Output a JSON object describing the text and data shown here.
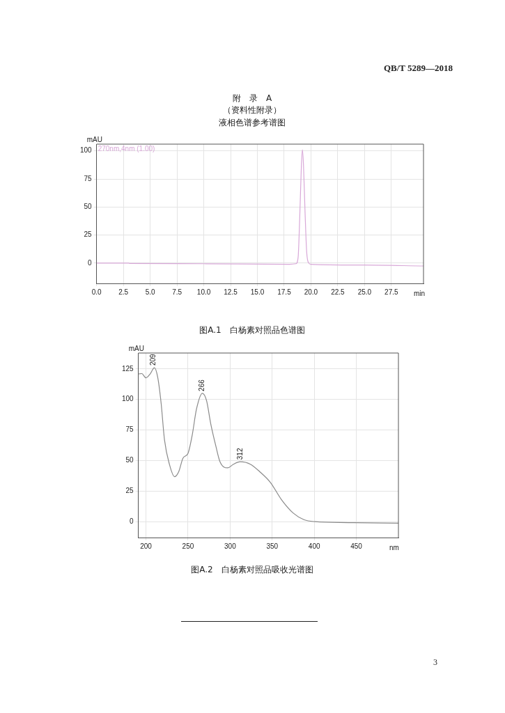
{
  "chart_data": [
    {
      "type": "line",
      "title": "液相色谱参考谱图",
      "xlabel": "min",
      "ylabel": "mAU",
      "annotations": [
        "QB/T 5289—2018",
        "附　录　A",
        "（资料性附录）",
        "图A.1　白杨素对照品色谱图"
      ],
      "series": [
        {
          "name": "270nm,4nm (1.00)",
          "color": "#d8a8d8",
          "x": [
            0,
            3,
            3.1,
            10,
            18,
            18.6,
            18.8,
            18.95,
            19.1,
            19.2,
            19.3,
            19.45,
            19.6,
            19.8,
            20,
            25,
            30.5
          ],
          "values": [
            0,
            0,
            -0.3,
            -0.5,
            -1,
            -0.5,
            5,
            40,
            85,
            101,
            88,
            45,
            10,
            0,
            -1,
            -1.7,
            -2.5
          ]
        }
      ],
      "xlim": [
        0,
        30.5
      ],
      "ylim": [
        -18,
        106
      ],
      "xticks": [
        {
          "value": 0,
          "label": "0.0"
        },
        {
          "value": 2.5,
          "label": "2.5"
        },
        {
          "value": 5,
          "label": "5.0"
        },
        {
          "value": 7.5,
          "label": "7.5"
        },
        {
          "value": 10,
          "label": "10.0"
        },
        {
          "value": 12.5,
          "label": "12.5"
        },
        {
          "value": 15,
          "label": "15.0"
        },
        {
          "value": 17.5,
          "label": "17.5"
        },
        {
          "value": 20,
          "label": "20.0"
        },
        {
          "value": 22.5,
          "label": "22.5"
        },
        {
          "value": 25,
          "label": "25.0"
        },
        {
          "value": 27.5,
          "label": "27.5"
        }
      ],
      "yticks": [
        0,
        25,
        50,
        75,
        100
      ],
      "grid": true,
      "legend": "top left",
      "marker": "none",
      "line_style": "solid"
    },
    {
      "type": "line",
      "xlabel": "nm",
      "ylabel": "mAU",
      "annotations": [
        {
          "text": "209",
          "x": 209,
          "y": 126
        },
        {
          "text": "266",
          "x": 267,
          "y": 105
        },
        {
          "text": "312",
          "x": 312,
          "y": 49
        },
        "图A.2　白杨素对照品吸收光谱图",
        "3"
      ],
      "series": [
        {
          "color": "#8a8a8a",
          "x": [
            191,
            195,
            200,
            205,
            210,
            214,
            218,
            222,
            228,
            234,
            239,
            244,
            250,
            255,
            260,
            267,
            272,
            277,
            283,
            288,
            297,
            304,
            312,
            324,
            335,
            348,
            361,
            375,
            388,
            401,
            441,
            500
          ],
          "values": [
            120.9,
            121.2,
            117.7,
            120.9,
            126,
            118,
            97,
            67,
            46.6,
            36.8,
            41,
            52,
            56,
            71,
            92,
            105,
            99,
            80,
            62,
            49,
            44,
            47,
            49,
            47,
            41,
            32,
            18,
            7,
            1.5,
            0,
            -0.8,
            -1.3
          ]
        }
      ],
      "xlim": [
        191,
        500
      ],
      "ylim": [
        -13,
        138
      ],
      "xticks": [
        200,
        250,
        300,
        350,
        400,
        450
      ],
      "yticks": [
        0,
        25,
        50,
        75,
        100,
        125
      ],
      "grid": true,
      "marker": "none",
      "line_style": "solid"
    }
  ]
}
